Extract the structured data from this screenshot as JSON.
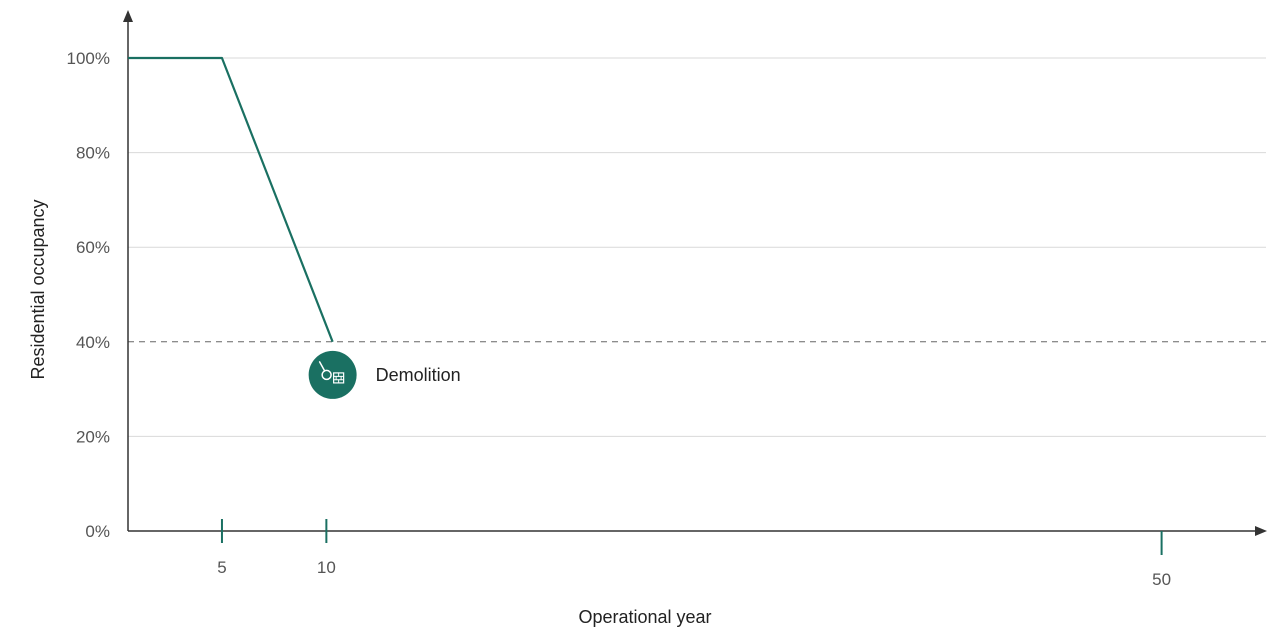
{
  "chart_data": {
    "type": "line",
    "xlabel": "Operational year",
    "ylabel": "Residential occupancy",
    "xlim": [
      0.5,
      55
    ],
    "ylim": [
      0,
      100
    ],
    "y_ticks": [
      0,
      20,
      40,
      60,
      80,
      100
    ],
    "y_tick_labels": [
      "0%",
      "20%",
      "40%",
      "60%",
      "80%",
      "100%"
    ],
    "x_ticks": [
      5,
      10,
      50
    ],
    "x_tick_labels": [
      "5",
      "10",
      "50"
    ],
    "grid": true,
    "series": [
      {
        "points": [
          [
            0.5,
            100
          ],
          [
            5,
            100
          ],
          [
            10.3,
            40
          ]
        ]
      }
    ],
    "threshold": {
      "y": 40,
      "style": "dashed"
    },
    "annotation": {
      "text": "Demolition",
      "x": 10.3,
      "y": 33,
      "icon": "wrecking-ball-icon"
    },
    "colors": {
      "line": "#1a7062",
      "marker": "#1a7062",
      "axis": "#333333",
      "grid": "#d9d9d9",
      "threshold": "#666666"
    }
  }
}
